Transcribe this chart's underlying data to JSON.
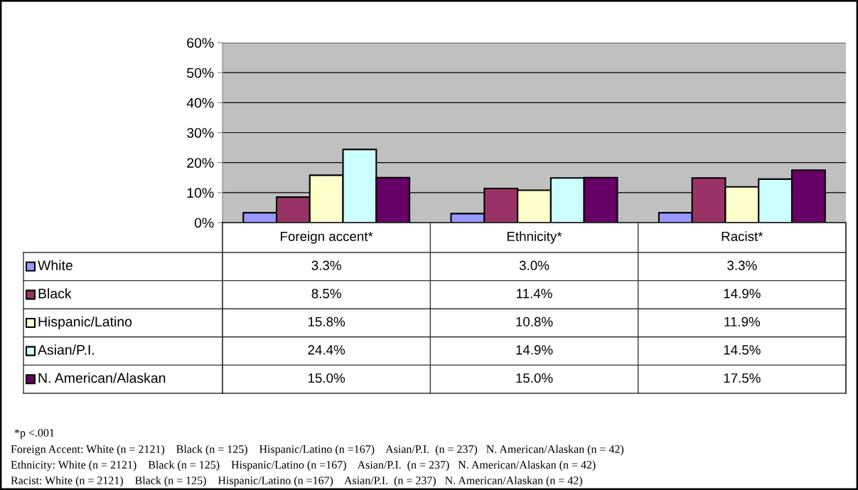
{
  "chart_data": {
    "type": "bar",
    "categories": [
      "Foreign accent*",
      "Ethnicity*",
      "Racist*"
    ],
    "series": [
      {
        "name": "White",
        "color": "#9999ff",
        "values": [
          3.3,
          3.0,
          3.3
        ],
        "value_labels": [
          "3.3%",
          "3.0%",
          "3.3%"
        ]
      },
      {
        "name": "Black",
        "color": "#993366",
        "values": [
          8.5,
          11.4,
          14.9
        ],
        "value_labels": [
          "8.5%",
          "11.4%",
          "14.9%"
        ]
      },
      {
        "name": "Hispanic/Latino",
        "color": "#ffffcc",
        "values": [
          15.8,
          10.8,
          11.9
        ],
        "value_labels": [
          "15.8%",
          "10.8%",
          "11.9%"
        ]
      },
      {
        "name": "Asian/P.I.",
        "color": "#ccffff",
        "values": [
          24.4,
          14.9,
          14.5
        ],
        "value_labels": [
          "24.4%",
          "14.9%",
          "14.5%"
        ]
      },
      {
        "name": "N. American/Alaskan",
        "color": "#660066",
        "values": [
          15.0,
          15.0,
          17.5
        ],
        "value_labels": [
          "15.0%",
          "15.0%",
          "17.5%"
        ]
      }
    ],
    "ylim": [
      0,
      60
    ],
    "yticks": [
      {
        "value": 0,
        "label": "0%"
      },
      {
        "value": 10,
        "label": "10%"
      },
      {
        "value": 20,
        "label": "20%"
      },
      {
        "value": 30,
        "label": "30%"
      },
      {
        "value": 40,
        "label": "40%"
      },
      {
        "value": 50,
        "label": "50%"
      },
      {
        "value": 60,
        "label": "60%"
      }
    ],
    "grid": "y",
    "legend": "left",
    "annotations": [
      "*p <.001",
      "Foreign Accent: White (n = 2121)    Black (n = 125)    Hispanic/Latino (n =167)    Asian/P.I.  (n = 237)   N. American/Alaskan (n = 42)",
      "Ethnicity: White (n = 2121)    Black (n = 125)    Hispanic/Latino (n =167)    Asian/P.I.  (n = 237)   N. American/Alaskan (n = 42)",
      "Racist: White (n = 2121)    Black (n = 125)    Hispanic/Latino (n =167)    Asian/P.I.  (n = 237)   N. American/Alaskan (n = 42)"
    ]
  }
}
